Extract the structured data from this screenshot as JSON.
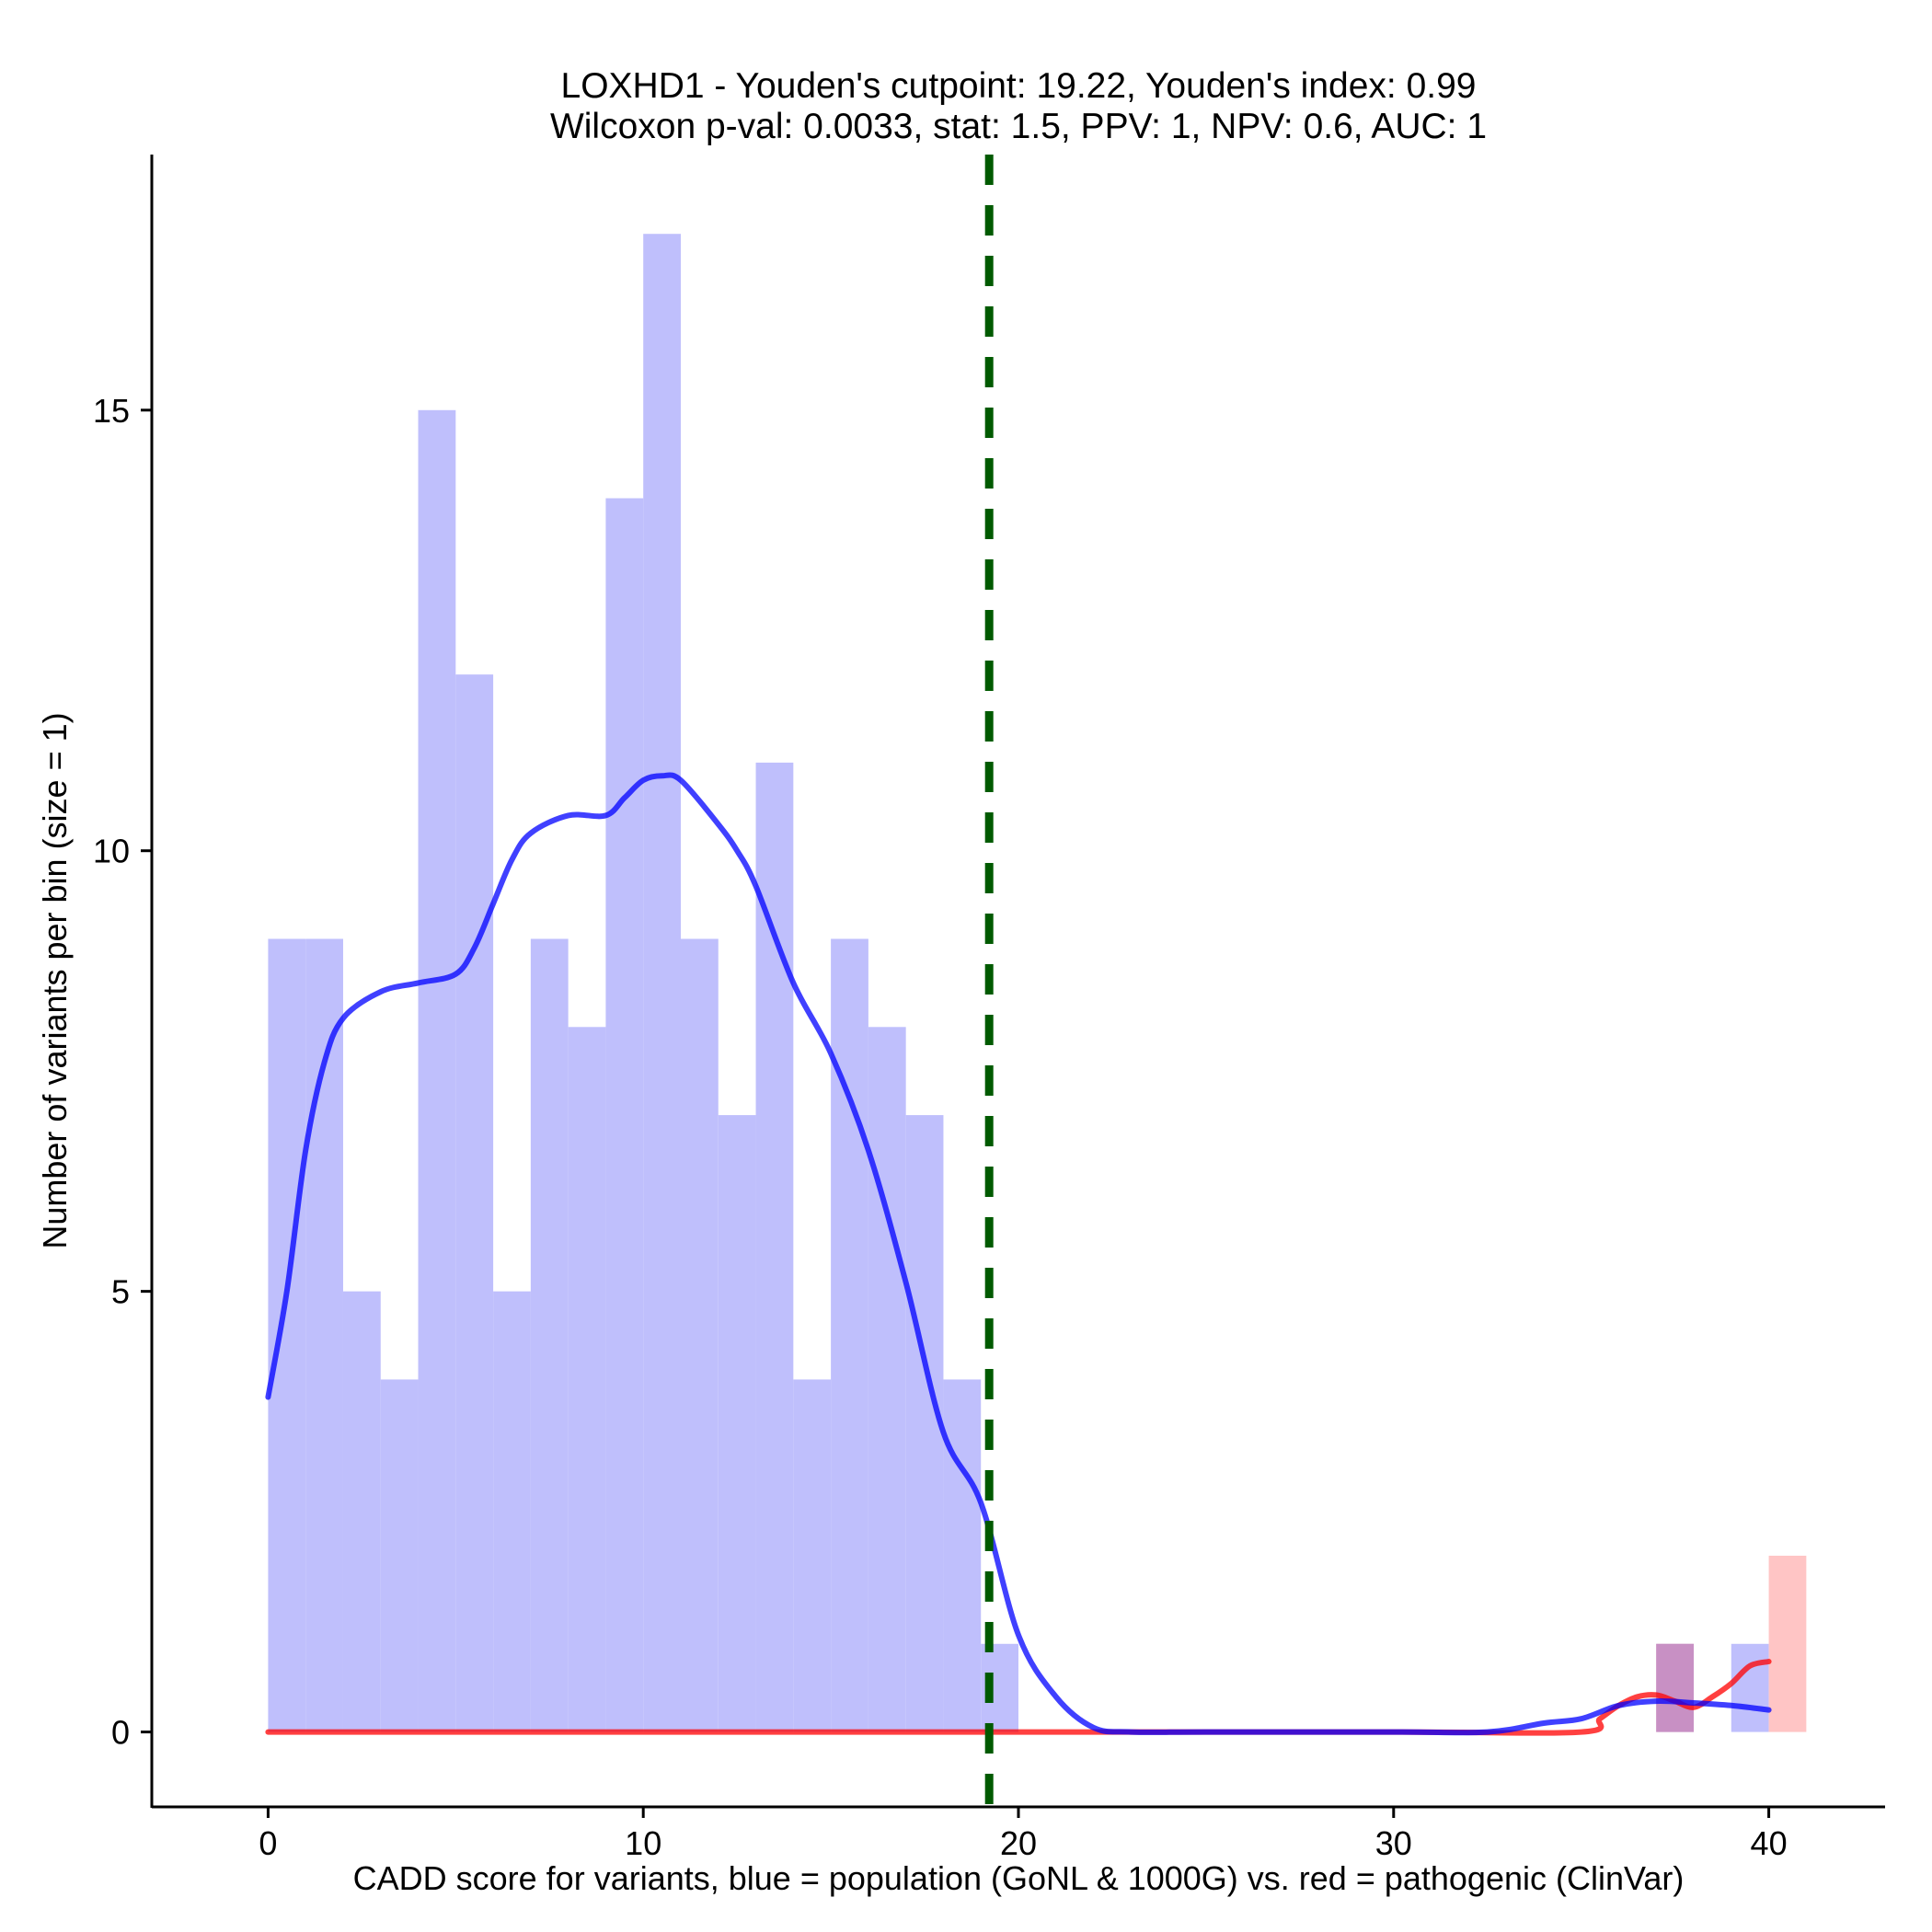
{
  "chart_data": {
    "type": "histogram",
    "title_line1": "LOXHD1 - Youden's cutpoint: 19.22, Youden's index: 0.99",
    "title_line2": "Wilcoxon p-val: 0.0033, stat: 1.5, PPV: 1, NPV: 0.6, AUC: 1",
    "xlabel": "CADD score for variants, blue = population (GoNL & 1000G) vs. red = pathogenic (ClinVar)",
    "ylabel": "Number of variants per bin (size = 1)",
    "xlim": [
      -3.1,
      43.1
    ],
    "ylim": [
      -0.85,
      17.9
    ],
    "x_ticks": [
      0,
      10,
      20,
      30,
      40
    ],
    "x_tick_labels": [
      "0",
      "10",
      "20",
      "30",
      "40"
    ],
    "y_ticks": [
      0,
      5,
      10,
      15
    ],
    "y_tick_labels": [
      "0",
      "5",
      "10",
      "15"
    ],
    "bin_size": 1,
    "cutpoint": 19.22,
    "series": [
      {
        "name": "population (GoNL & 1000G)",
        "color": "#0000ff",
        "bar_color": "#bfbffc",
        "bins": [
          {
            "x": 0,
            "count": 9
          },
          {
            "x": 1,
            "count": 9
          },
          {
            "x": 2,
            "count": 5
          },
          {
            "x": 3,
            "count": 4
          },
          {
            "x": 4,
            "count": 15
          },
          {
            "x": 5,
            "count": 12
          },
          {
            "x": 6,
            "count": 5
          },
          {
            "x": 7,
            "count": 9
          },
          {
            "x": 8,
            "count": 8
          },
          {
            "x": 9,
            "count": 14
          },
          {
            "x": 10,
            "count": 17
          },
          {
            "x": 11,
            "count": 9
          },
          {
            "x": 12,
            "count": 7
          },
          {
            "x": 13,
            "count": 11
          },
          {
            "x": 14,
            "count": 4
          },
          {
            "x": 15,
            "count": 9
          },
          {
            "x": 16,
            "count": 8
          },
          {
            "x": 17,
            "count": 7
          },
          {
            "x": 18,
            "count": 4
          },
          {
            "x": 19,
            "count": 1
          },
          {
            "x": 37,
            "count": 1
          },
          {
            "x": 39,
            "count": 1
          }
        ],
        "density_curve": [
          [
            0,
            3.8
          ],
          [
            0.5,
            5.0
          ],
          [
            1,
            6.6
          ],
          [
            1.5,
            7.6
          ],
          [
            2,
            8.1
          ],
          [
            3,
            8.4
          ],
          [
            4,
            8.5
          ],
          [
            5,
            8.6
          ],
          [
            5.5,
            8.9
          ],
          [
            6,
            9.4
          ],
          [
            6.5,
            9.9
          ],
          [
            7,
            10.2
          ],
          [
            8,
            10.4
          ],
          [
            9,
            10.4
          ],
          [
            9.5,
            10.6
          ],
          [
            10,
            10.8
          ],
          [
            10.5,
            10.85
          ],
          [
            11,
            10.8
          ],
          [
            12,
            10.3
          ],
          [
            12.5,
            10.0
          ],
          [
            13,
            9.6
          ],
          [
            14,
            8.5
          ],
          [
            15,
            7.7
          ],
          [
            16,
            6.6
          ],
          [
            17,
            5.1
          ],
          [
            18,
            3.4
          ],
          [
            19,
            2.6
          ],
          [
            20,
            1.1
          ],
          [
            21,
            0.4
          ],
          [
            22,
            0.05
          ],
          [
            23,
            0.0
          ],
          [
            25,
            0.0
          ],
          [
            30,
            0.0
          ],
          [
            32.5,
            0.0
          ],
          [
            34,
            0.1
          ],
          [
            35,
            0.15
          ],
          [
            36,
            0.3
          ],
          [
            37,
            0.35
          ],
          [
            38,
            0.33
          ],
          [
            39,
            0.3
          ],
          [
            40,
            0.25
          ]
        ]
      },
      {
        "name": "pathogenic (ClinVar)",
        "color": "#ff0000",
        "bar_color": "#ffbfbf",
        "bins": [
          {
            "x": 37,
            "count": 1
          },
          {
            "x": 40,
            "count": 2
          }
        ],
        "density_curve": [
          [
            0,
            0.0
          ],
          [
            10,
            0.0
          ],
          [
            20,
            0.0
          ],
          [
            30,
            0.0
          ],
          [
            35,
            0.0
          ],
          [
            35.5,
            0.15
          ],
          [
            36,
            0.3
          ],
          [
            36.5,
            0.4
          ],
          [
            37,
            0.42
          ],
          [
            37.5,
            0.35
          ],
          [
            38,
            0.28
          ],
          [
            38.5,
            0.4
          ],
          [
            39,
            0.55
          ],
          [
            39.5,
            0.75
          ],
          [
            40,
            0.8
          ]
        ]
      }
    ]
  }
}
